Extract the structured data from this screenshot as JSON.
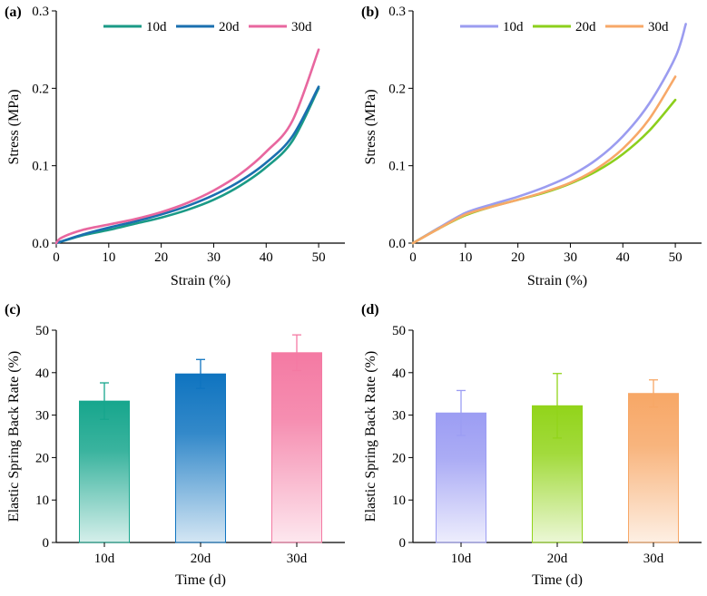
{
  "chart_data": [
    {
      "panel_label": "(a)",
      "type": "line",
      "xlabel": "Strain (%)",
      "ylabel": "Stress (MPa)",
      "xlim": [
        0,
        55
      ],
      "ylim": [
        0,
        0.3
      ],
      "xticks": [
        0,
        10,
        20,
        30,
        40,
        50
      ],
      "xtick_labels": [
        "0",
        "10",
        "20",
        "30",
        "40",
        "50"
      ],
      "yticks": [
        0,
        0.1,
        0.2,
        0.3
      ],
      "ytick_labels": [
        "0.0",
        "0.1",
        "0.2",
        "0.3"
      ],
      "legend": "top",
      "series": [
        {
          "name": "10d",
          "color": "#1a9a86",
          "points": [
            [
              0,
              0
            ],
            [
              5,
              0.01
            ],
            [
              10,
              0.017
            ],
            [
              15,
              0.025
            ],
            [
              20,
              0.033
            ],
            [
              25,
              0.043
            ],
            [
              30,
              0.056
            ],
            [
              35,
              0.074
            ],
            [
              40,
              0.098
            ],
            [
              45,
              0.132
            ],
            [
              50,
              0.2
            ]
          ]
        },
        {
          "name": "20d",
          "color": "#1a6faf",
          "points": [
            [
              0,
              0
            ],
            [
              5,
              0.011
            ],
            [
              10,
              0.02
            ],
            [
              15,
              0.028
            ],
            [
              20,
              0.037
            ],
            [
              25,
              0.048
            ],
            [
              30,
              0.062
            ],
            [
              35,
              0.08
            ],
            [
              40,
              0.104
            ],
            [
              45,
              0.138
            ],
            [
              50,
              0.202
            ]
          ]
        },
        {
          "name": "30d",
          "color": "#e8679f",
          "points": [
            [
              0,
              0
            ],
            [
              1,
              0.007
            ],
            [
              5,
              0.017
            ],
            [
              10,
              0.024
            ],
            [
              15,
              0.031
            ],
            [
              20,
              0.04
            ],
            [
              25,
              0.052
            ],
            [
              30,
              0.068
            ],
            [
              35,
              0.089
            ],
            [
              40,
              0.118
            ],
            [
              45,
              0.158
            ],
            [
              50,
              0.25
            ]
          ]
        }
      ]
    },
    {
      "panel_label": "(b)",
      "type": "line",
      "xlabel": "Strain (%)",
      "ylabel": "Stress (MPa)",
      "xlim": [
        0,
        55
      ],
      "ylim": [
        0,
        0.3
      ],
      "xticks": [
        0,
        10,
        20,
        30,
        40,
        50
      ],
      "xtick_labels": [
        "0",
        "10",
        "20",
        "30",
        "40",
        "50"
      ],
      "yticks": [
        0,
        0.1,
        0.2,
        0.3
      ],
      "ytick_labels": [
        "0.0",
        "0.1",
        "0.2",
        "0.3"
      ],
      "legend": "top",
      "series": [
        {
          "name": "10d",
          "color": "#9b9cf0",
          "points": [
            [
              0,
              0
            ],
            [
              5,
              0.02
            ],
            [
              10,
              0.039
            ],
            [
              15,
              0.05
            ],
            [
              20,
              0.06
            ],
            [
              25,
              0.072
            ],
            [
              30,
              0.087
            ],
            [
              35,
              0.108
            ],
            [
              40,
              0.138
            ],
            [
              45,
              0.18
            ],
            [
              50,
              0.24
            ],
            [
              52,
              0.283
            ]
          ]
        },
        {
          "name": "20d",
          "color": "#8ccf1c",
          "points": [
            [
              0,
              0
            ],
            [
              5,
              0.019
            ],
            [
              10,
              0.036
            ],
            [
              15,
              0.047
            ],
            [
              20,
              0.056
            ],
            [
              25,
              0.065
            ],
            [
              30,
              0.077
            ],
            [
              35,
              0.093
            ],
            [
              40,
              0.115
            ],
            [
              45,
              0.145
            ],
            [
              50,
              0.185
            ]
          ]
        },
        {
          "name": "30d",
          "color": "#f7a868",
          "points": [
            [
              0,
              0
            ],
            [
              5,
              0.019
            ],
            [
              10,
              0.037
            ],
            [
              15,
              0.047
            ],
            [
              20,
              0.056
            ],
            [
              25,
              0.066
            ],
            [
              30,
              0.078
            ],
            [
              35,
              0.096
            ],
            [
              40,
              0.122
            ],
            [
              45,
              0.16
            ],
            [
              50,
              0.215
            ]
          ]
        }
      ]
    },
    {
      "panel_label": "(c)",
      "type": "bar",
      "xlabel": "Time (d)",
      "ylabel": "Elastic Spring Back Rate (%)",
      "ylim": [
        0,
        50
      ],
      "yticks": [
        0,
        10,
        20,
        30,
        40,
        50
      ],
      "ytick_labels": [
        "0",
        "10",
        "20",
        "30",
        "40",
        "50"
      ],
      "categories": [
        "10d",
        "20d",
        "30d"
      ],
      "values": [
        33.3,
        39.7,
        44.7
      ],
      "errors": [
        4.3,
        3.4,
        4.2
      ],
      "colors": [
        "#17a68d",
        "#0f74c0",
        "#f47aa3"
      ]
    },
    {
      "panel_label": "(d)",
      "type": "bar",
      "xlabel": "Time (d)",
      "ylabel": "Elastic Spring Back Rate (%)",
      "ylim": [
        0,
        50
      ],
      "yticks": [
        0,
        10,
        20,
        30,
        40,
        50
      ],
      "ytick_labels": [
        "0",
        "10",
        "20",
        "30",
        "40",
        "50"
      ],
      "categories": [
        "10d",
        "20d",
        "30d"
      ],
      "values": [
        30.5,
        32.2,
        35.1
      ],
      "errors": [
        5.3,
        7.6,
        3.2
      ],
      "colors": [
        "#9c9df3",
        "#92d41a",
        "#f7a766"
      ]
    }
  ]
}
